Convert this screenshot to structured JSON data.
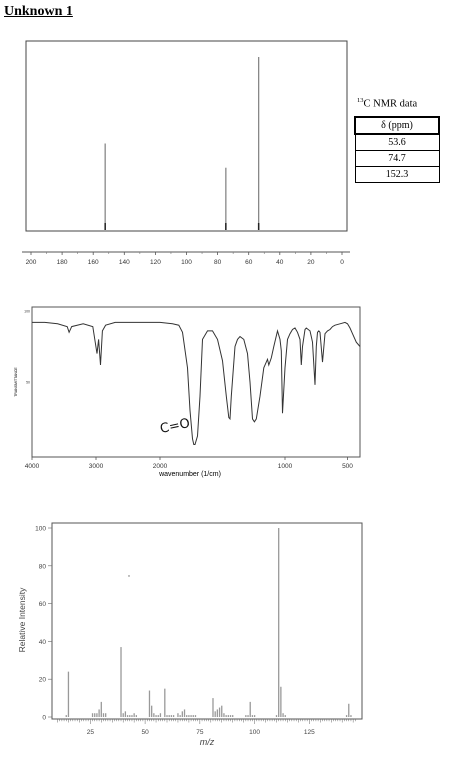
{
  "page": {
    "title": "Unknown 1"
  },
  "nmr_table": {
    "sup": "13",
    "label": "C NMR data",
    "header": "δ (ppm)",
    "rows": [
      "53.6",
      "74.7",
      "152.3"
    ]
  },
  "ir_annotation": "C=O",
  "chart_data": [
    {
      "type": "bar",
      "title": "",
      "xlabel": "",
      "ylabel": "",
      "xlim": [
        200,
        0
      ],
      "x_ticks": [
        "200",
        "180",
        "160",
        "140",
        "120",
        "100",
        "80",
        "60",
        "40",
        "20",
        "0"
      ],
      "peaks_x": [
        152.3,
        74.7,
        53.6
      ],
      "peaks_height": [
        0.5,
        0.36,
        1.0
      ]
    },
    {
      "type": "line",
      "title": "",
      "xlabel": "wavenumber (1/cm)",
      "ylabel": "TRANSMITTANCE",
      "xlim": [
        4000,
        400
      ],
      "ylim": [
        0,
        100
      ],
      "x_ticks": [
        "4000",
        "3000",
        "2000",
        "1000",
        "500"
      ],
      "y_ticks": [
        "100",
        "50"
      ],
      "x": [
        4000,
        3800,
        3600,
        3450,
        3420,
        3380,
        3200,
        3050,
        2985,
        2960,
        2930,
        2900,
        2850,
        2700,
        2400,
        2200,
        2000,
        1900,
        1850,
        1820,
        1780,
        1760,
        1740,
        1730,
        1720,
        1700,
        1680,
        1660,
        1620,
        1580,
        1540,
        1500,
        1470,
        1450,
        1440,
        1430,
        1400,
        1380,
        1360,
        1330,
        1300,
        1280,
        1260,
        1245,
        1230,
        1200,
        1170,
        1140,
        1130,
        1110,
        1090,
        1060,
        1040,
        1030,
        1020,
        1000,
        980,
        960,
        940,
        920,
        900,
        880,
        870,
        860,
        840,
        830,
        800,
        790,
        780,
        760,
        750,
        740,
        730,
        720,
        700,
        680,
        660,
        640,
        620,
        600,
        560,
        520,
        500,
        480,
        460,
        430,
        400
      ],
      "y": [
        92,
        92,
        91,
        89,
        85,
        89,
        91,
        89,
        70,
        80,
        62,
        86,
        90,
        92,
        92,
        92,
        92,
        91,
        90,
        85,
        60,
        30,
        10,
        6,
        6,
        12,
        40,
        80,
        86,
        86,
        80,
        65,
        40,
        25,
        24,
        40,
        75,
        80,
        82,
        80,
        70,
        50,
        24,
        22,
        24,
        40,
        60,
        66,
        62,
        67,
        75,
        86,
        80,
        72,
        28,
        60,
        80,
        84,
        87,
        88,
        85,
        80,
        62,
        75,
        87,
        88,
        86,
        82,
        78,
        48,
        75,
        85,
        86,
        85,
        64,
        84,
        86,
        87,
        89,
        90,
        91,
        92,
        91,
        88,
        84,
        78,
        75
      ]
    },
    {
      "type": "bar",
      "title": "",
      "xlabel": "m/z",
      "ylabel": "Relative Intensity",
      "xlim": [
        5,
        147
      ],
      "ylim": [
        0,
        100
      ],
      "x_ticks": [
        "25",
        "50",
        "75",
        "100",
        "125"
      ],
      "y_ticks": [
        "0",
        "20",
        "40",
        "60",
        "80",
        "100"
      ],
      "x": [
        14,
        15,
        26,
        27,
        28,
        29,
        30,
        31,
        32,
        39,
        40,
        41,
        42,
        43,
        44,
        45,
        46,
        52,
        53,
        54,
        55,
        56,
        57,
        59,
        60,
        61,
        62,
        63,
        65,
        66,
        67,
        68,
        69,
        70,
        71,
        72,
        73,
        81,
        82,
        83,
        84,
        85,
        86,
        87,
        88,
        89,
        90,
        96,
        97,
        98,
        99,
        100,
        110,
        111,
        112,
        113,
        114,
        142,
        143,
        144
      ],
      "values": [
        1,
        24,
        2,
        2,
        2,
        4,
        8,
        2,
        2,
        37,
        2,
        3,
        1,
        1,
        1,
        2,
        1,
        14,
        6,
        2,
        1,
        1,
        2,
        15,
        1,
        1,
        1,
        1,
        2,
        1,
        3,
        4,
        1,
        1,
        1,
        1,
        1,
        10,
        3,
        4,
        5,
        6,
        2,
        1,
        1,
        1,
        1,
        1,
        1,
        8,
        1,
        1,
        1,
        100,
        16,
        2,
        1,
        1,
        7,
        1
      ]
    }
  ]
}
